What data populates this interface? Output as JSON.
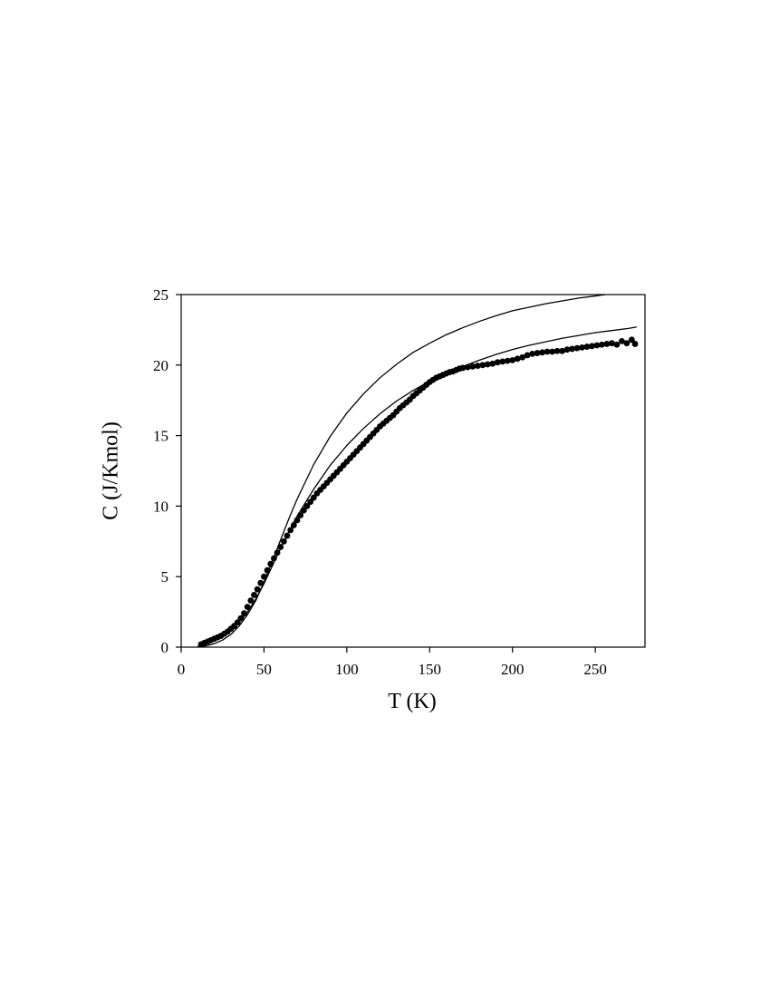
{
  "chart_data": {
    "type": "scatter",
    "title": "",
    "xlabel": "T (K)",
    "ylabel": "C (J/Kmol)",
    "xlim": [
      0,
      280
    ],
    "ylim": [
      0,
      25
    ],
    "xticks": [
      0,
      50,
      100,
      150,
      200,
      250
    ],
    "yticks": [
      0,
      5,
      10,
      15,
      20,
      25
    ],
    "grid": false,
    "legend": "none",
    "colors": {
      "marks": "#000000",
      "background": "#ffffff"
    },
    "series": [
      {
        "kind": "scatter",
        "marker": "filled-circle",
        "x": [
          12,
          14,
          16,
          18,
          20,
          22,
          24,
          26,
          28,
          30,
          32,
          34,
          36,
          38,
          40,
          42,
          44,
          46,
          48,
          50,
          52,
          54,
          56,
          58,
          60,
          62,
          64,
          66,
          68,
          70,
          72,
          74,
          76,
          78,
          80,
          82,
          84,
          86,
          88,
          90,
          92,
          94,
          96,
          98,
          100,
          102,
          104,
          106,
          108,
          110,
          112,
          114,
          116,
          118,
          120,
          122,
          124,
          126,
          128,
          130,
          132,
          134,
          136,
          138,
          140,
          142,
          144,
          146,
          148,
          150,
          152,
          154,
          156,
          158,
          160,
          162,
          164,
          166,
          168,
          170,
          173,
          176,
          179,
          182,
          185,
          188,
          191,
          194,
          197,
          200,
          203,
          206,
          209,
          212,
          215,
          218,
          221,
          224,
          227,
          230,
          233,
          236,
          239,
          242,
          245,
          248,
          251,
          254,
          257,
          260,
          263,
          266,
          269,
          272,
          274
        ],
        "y": [
          0.2,
          0.3,
          0.4,
          0.5,
          0.6,
          0.7,
          0.8,
          0.95,
          1.1,
          1.3,
          1.5,
          1.75,
          2.05,
          2.4,
          2.85,
          3.3,
          3.7,
          4.1,
          4.55,
          5.0,
          5.45,
          5.9,
          6.3,
          6.7,
          7.1,
          7.5,
          7.9,
          8.3,
          8.65,
          9.0,
          9.35,
          9.7,
          10.0,
          10.3,
          10.6,
          10.9,
          11.15,
          11.4,
          11.65,
          11.9,
          12.15,
          12.4,
          12.65,
          12.9,
          13.15,
          13.4,
          13.65,
          13.9,
          14.15,
          14.4,
          14.65,
          14.9,
          15.15,
          15.4,
          15.65,
          15.85,
          16.05,
          16.25,
          16.45,
          16.7,
          16.95,
          17.15,
          17.35,
          17.55,
          17.8,
          18.0,
          18.2,
          18.4,
          18.6,
          18.8,
          18.95,
          19.1,
          19.2,
          19.3,
          19.4,
          19.5,
          19.55,
          19.65,
          19.75,
          19.8,
          19.85,
          19.9,
          19.95,
          20.0,
          20.05,
          20.1,
          20.2,
          20.25,
          20.3,
          20.35,
          20.45,
          20.55,
          20.7,
          20.8,
          20.85,
          20.9,
          20.95,
          20.95,
          21.0,
          21.0,
          21.1,
          21.15,
          21.2,
          21.25,
          21.3,
          21.35,
          21.4,
          21.45,
          21.5,
          21.55,
          21.45,
          21.7,
          21.55,
          21.8,
          21.5
        ]
      },
      {
        "kind": "line",
        "x": [
          10,
          15,
          20,
          25,
          30,
          35,
          40,
          45,
          50,
          55,
          60,
          65,
          70,
          80,
          90,
          100,
          110,
          120,
          130,
          140,
          150,
          160,
          170,
          180,
          190,
          200,
          210,
          220,
          230,
          240,
          250,
          256
        ],
        "y": [
          0.0,
          0.1,
          0.25,
          0.5,
          0.9,
          1.5,
          2.3,
          3.3,
          4.6,
          6.1,
          7.6,
          9.1,
          10.5,
          12.95,
          14.95,
          16.6,
          17.95,
          19.1,
          20.05,
          20.9,
          21.55,
          22.15,
          22.65,
          23.1,
          23.5,
          23.85,
          24.1,
          24.35,
          24.55,
          24.75,
          24.9,
          25.0
        ]
      },
      {
        "kind": "line",
        "x": [
          10,
          15,
          20,
          25,
          30,
          35,
          40,
          45,
          50,
          55,
          60,
          65,
          70,
          80,
          90,
          100,
          110,
          120,
          130,
          140,
          150,
          160,
          170,
          180,
          190,
          200,
          210,
          220,
          230,
          240,
          250,
          260,
          270,
          275
        ],
        "y": [
          0.05,
          0.25,
          0.5,
          0.8,
          1.2,
          1.75,
          2.5,
          3.4,
          4.5,
          5.75,
          7.0,
          8.2,
          9.3,
          11.2,
          12.9,
          14.3,
          15.5,
          16.55,
          17.45,
          18.2,
          18.85,
          19.4,
          19.9,
          20.35,
          20.75,
          21.1,
          21.4,
          21.65,
          21.9,
          22.1,
          22.3,
          22.45,
          22.6,
          22.7
        ]
      }
    ]
  }
}
